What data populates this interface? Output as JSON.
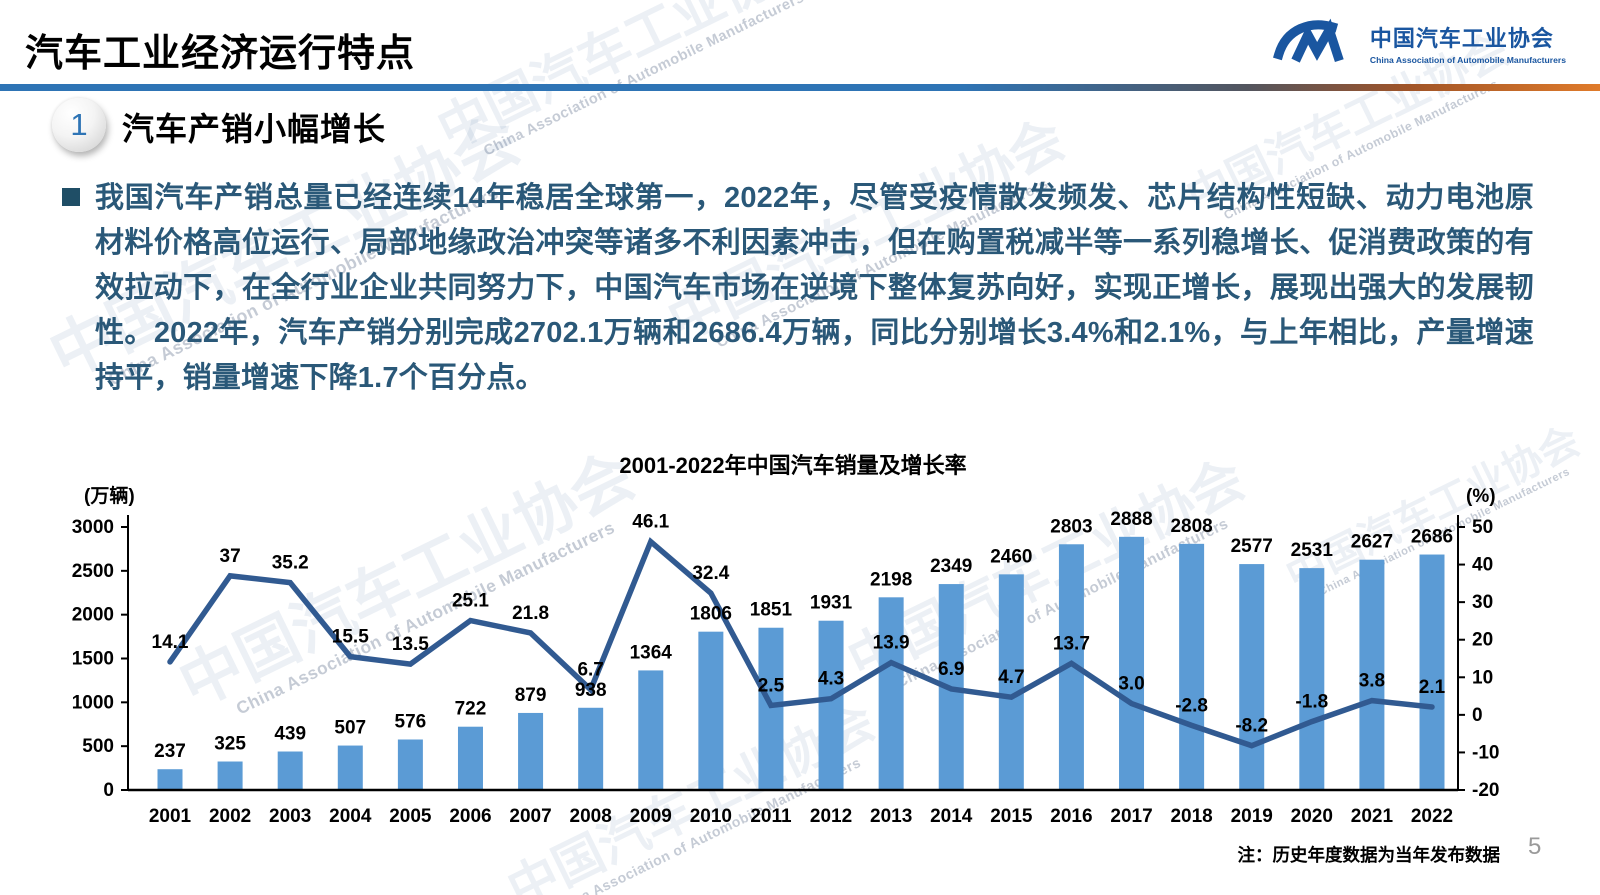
{
  "page": {
    "title": "汽车工业经济运行特点",
    "note": "注：历史年度数据为当年发布数据",
    "page_number": "5"
  },
  "logo": {
    "name_cn": "中国汽车工业协会",
    "name_en": "China Association of Automobile Manufacturers"
  },
  "section": {
    "number": "1",
    "heading": "汽车产销小幅增长"
  },
  "body": {
    "paragraph": "我国汽车产销总量已经连续14年稳居全球第一，2022年，尽管受疫情散发频发、芯片结构性短缺、动力电池原材料价格高位运行、局部地缘政治冲突等诸多不利因素冲击，但在购置税减半等一系列稳增长、促消费政策的有效拉动下，在全行业企业共同努力下，中国汽车市场在逆境下整体复苏向好，实现正增长，展现出强大的发展韧性。2022年，汽车产销分别完成2702.1万辆和2686.4万辆，同比分别增长3.4%和2.1%，与上年相比，产量增速持平，销量增速下降1.7个百分点。"
  },
  "watermark": {
    "text": "中国汽车工业协会",
    "subtext": "China Association of Automobile Manufacturers"
  },
  "chart_data": {
    "type": "bar+line",
    "title": "2001-2022年中国汽车销量及增长率",
    "categories": [
      "2001",
      "2002",
      "2003",
      "2004",
      "2005",
      "2006",
      "2007",
      "2008",
      "2009",
      "2010",
      "2011",
      "2012",
      "2013",
      "2014",
      "2015",
      "2016",
      "2017",
      "2018",
      "2019",
      "2020",
      "2021",
      "2022"
    ],
    "series": [
      {
        "name": "汽车销量",
        "type": "bar",
        "axis": "left",
        "color": "#5B9BD5",
        "values": [
          237,
          325,
          439,
          507,
          576,
          722,
          879,
          938,
          1364,
          1806,
          1851,
          1931,
          2198,
          2349,
          2460,
          2803,
          2888,
          2808,
          2577,
          2531,
          2627,
          2686
        ],
        "labels": [
          "237",
          "325",
          "439",
          "507",
          "576",
          "722",
          "879",
          "938",
          "1364",
          "1806",
          "1851",
          "1931",
          "2198",
          "2349",
          "2460",
          "2803",
          "2888",
          "2808",
          "2577",
          "2531",
          "2627",
          "2686"
        ]
      },
      {
        "name": "增长率",
        "type": "line",
        "axis": "right",
        "color": "#315A91",
        "values": [
          14.1,
          37,
          35.2,
          15.5,
          13.5,
          25.1,
          21.8,
          6.7,
          46.1,
          32.4,
          2.5,
          4.3,
          13.9,
          6.9,
          4.7,
          13.7,
          3.0,
          -2.8,
          -8.2,
          -1.8,
          3.8,
          2.1
        ],
        "labels": [
          "14.1",
          "37",
          "35.2",
          "15.5",
          "13.5",
          "25.1",
          "21.8",
          "6.7",
          "46.1",
          "32.4",
          "2.5",
          "4.3",
          "13.9",
          "6.9",
          "4.7",
          "13.7",
          "3.0",
          "-2.8",
          "-8.2",
          "-1.8",
          "3.8",
          "2.1"
        ]
      }
    ],
    "left_axis": {
      "label": "(万辆)",
      "min": 0,
      "max": 3000,
      "ticks": [
        3000,
        2500,
        2000,
        1500,
        1000,
        500,
        0
      ]
    },
    "right_axis": {
      "label": "(%)",
      "min": -20,
      "max": 50,
      "ticks": [
        50,
        40,
        30,
        20,
        10,
        0,
        -10,
        -20
      ]
    },
    "legend": "none",
    "grid": "off"
  }
}
